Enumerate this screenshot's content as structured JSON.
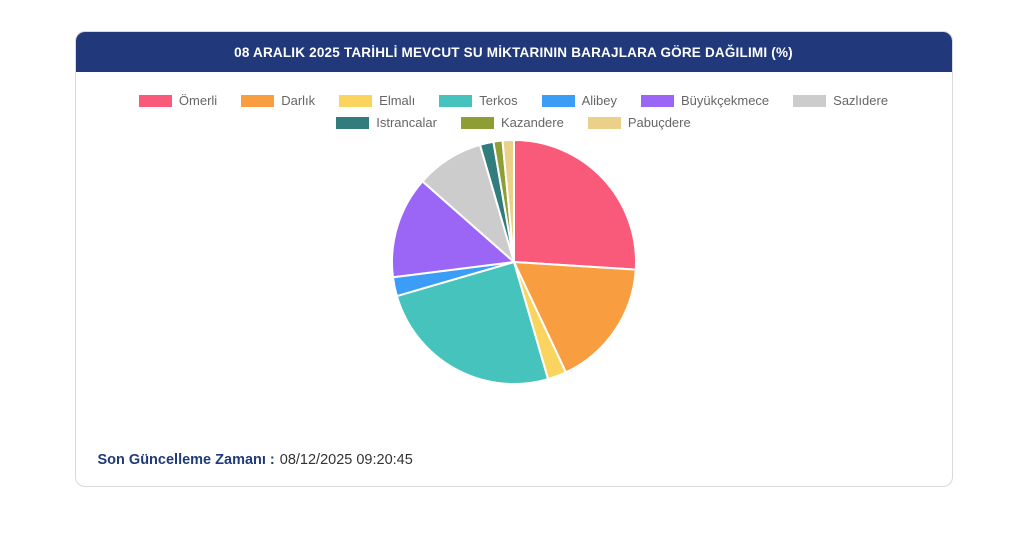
{
  "theme": {
    "header_bg": "#21397A",
    "footer_label_color": "#1F3B7A",
    "legend_text_color": "#666666",
    "card_border": "#D9D9D9"
  },
  "card": {
    "title": "08 ARALIK 2025 TARİHLİ MEVCUT SU MİKTARININ BARAJLARA GÖRE DAĞILIMI (%)",
    "footer_label": "Son Güncelleme Zamanı :",
    "footer_value": "08/12/2025 09:20:45"
  },
  "chart_data": {
    "type": "pie",
    "title": "08 ARALIK 2025 TARİHLİ MEVCUT SU MİKTARININ BARAJLARA GÖRE DAĞILIMI (%)",
    "unit": "%",
    "legend_position": "top",
    "start_angle_deg": 0,
    "direction": "clockwise",
    "categories": [
      "Ömerli",
      "Darlık",
      "Elmalı",
      "Terkos",
      "Alibey",
      "Büyükçekmece",
      "Sazlıdere",
      "Istrancalar",
      "Kazandere",
      "Pabuçdere"
    ],
    "values": [
      26,
      17,
      2.5,
      25,
      2.5,
      13.5,
      9,
      1.8,
      1.2,
      1.5
    ],
    "colors": [
      "#FA5A7A",
      "#F99D41",
      "#FBD45F",
      "#46C3BC",
      "#3B9DF5",
      "#9B66F6",
      "#CCCCCC",
      "#317C7C",
      "#8F9E34",
      "#EAD089"
    ]
  }
}
